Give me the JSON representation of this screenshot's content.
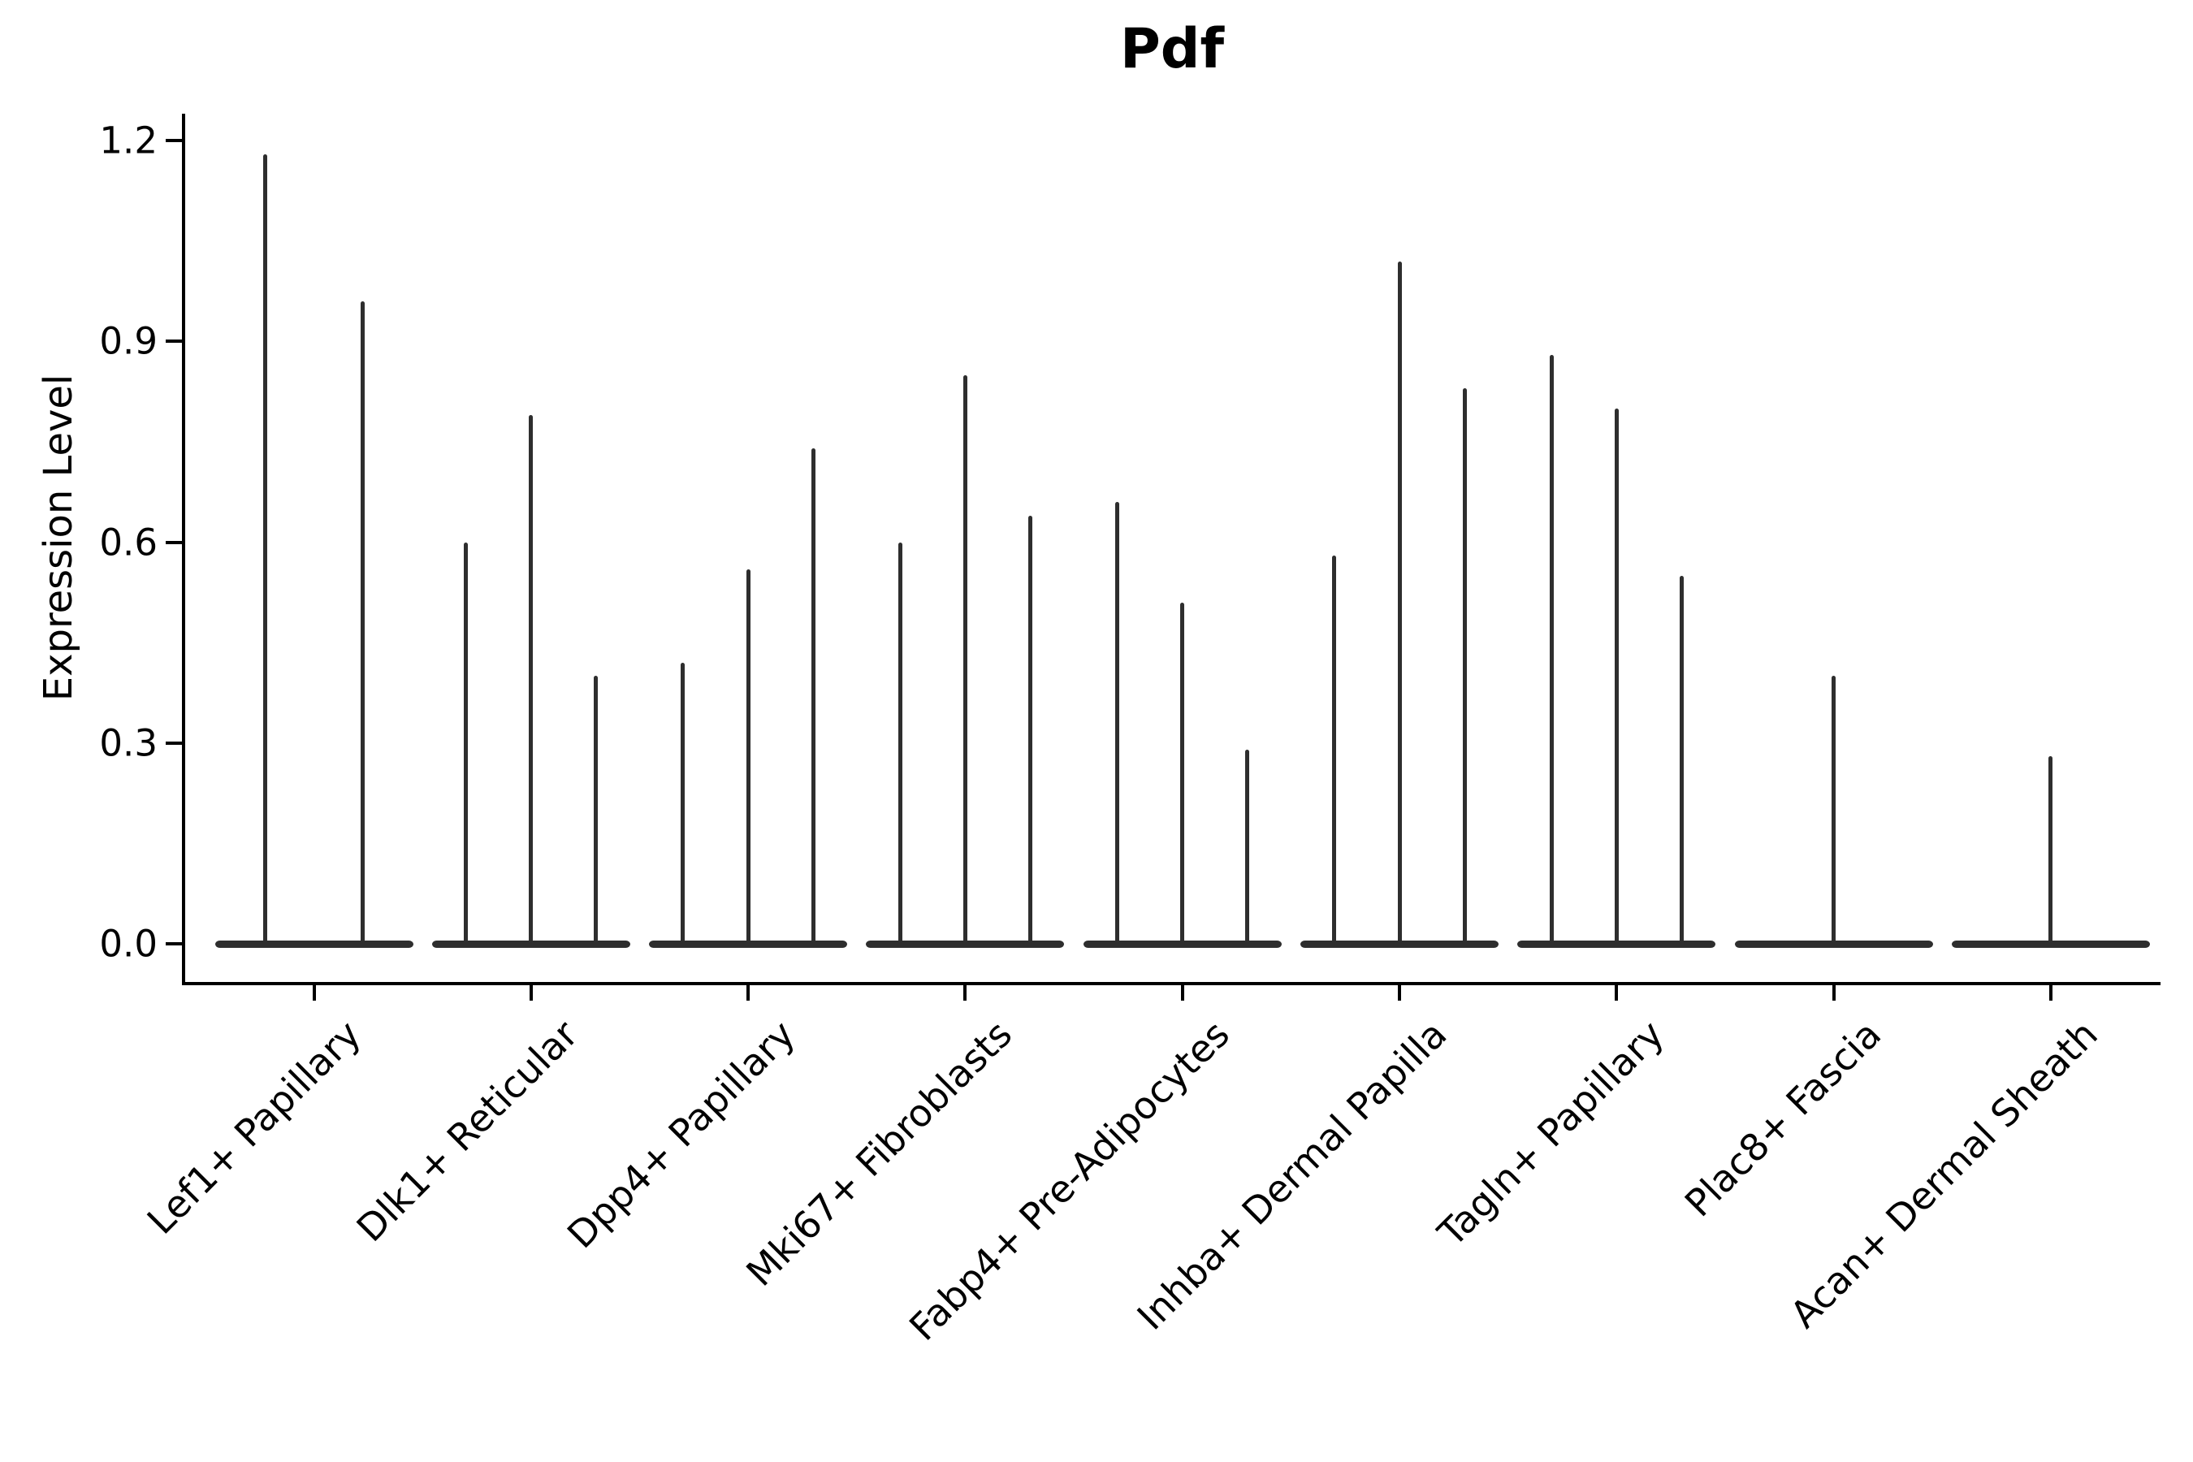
{
  "chart_data": {
    "type": "violin",
    "title": "Pdf",
    "ylabel": "Expression Level",
    "xlabel": "",
    "ylim": [
      0,
      1.2
    ],
    "yticks": [
      "0.0",
      "0.3",
      "0.6",
      "0.9",
      "1.2"
    ],
    "x_tick_rotation": 45,
    "grid": false,
    "legend": null,
    "violin_color": "#2e2e2e",
    "axis_color": "#000000",
    "categories": [
      "Lef1+ Papillary",
      "Dlk1+ Reticular",
      "Dpp4+ Papillary",
      "Mki67+ Fibroblasts",
      "Fabp4+ Pre-Adipocytes",
      "Inhba+ Dermal Papilla",
      "Tagln+ Papillary",
      "Plac8+ Fascia",
      "Acan+ Dermal Sheath"
    ],
    "groups": [
      {
        "label": "Lef1+ Papillary",
        "violins": [
          {
            "dx": -0.225,
            "max": 1.18
          },
          {
            "dx": 0.225,
            "max": 0.96
          }
        ]
      },
      {
        "label": "Dlk1+ Reticular",
        "violins": [
          {
            "dx": -0.3,
            "max": 0.6
          },
          {
            "dx": 0,
            "max": 0.79
          },
          {
            "dx": 0.3,
            "max": 0.4
          }
        ]
      },
      {
        "label": "Dpp4+ Papillary",
        "violins": [
          {
            "dx": -0.3,
            "max": 0.42
          },
          {
            "dx": 0,
            "max": 0.56
          },
          {
            "dx": 0.3,
            "max": 0.74
          }
        ]
      },
      {
        "label": "Mki67+ Fibroblasts",
        "violins": [
          {
            "dx": -0.3,
            "max": 0.6
          },
          {
            "dx": 0,
            "max": 0.85
          },
          {
            "dx": 0.3,
            "max": 0.64
          }
        ]
      },
      {
        "label": "Fabp4+ Pre-Adipocytes",
        "violins": [
          {
            "dx": -0.3,
            "max": 0.66
          },
          {
            "dx": 0,
            "max": 0.51
          },
          {
            "dx": 0.3,
            "max": 0.29
          }
        ]
      },
      {
        "label": "Inhba+ Dermal Papilla",
        "violins": [
          {
            "dx": -0.3,
            "max": 0.58
          },
          {
            "dx": 0,
            "max": 1.02
          },
          {
            "dx": 0.3,
            "max": 0.83
          }
        ]
      },
      {
        "label": "Tagln+ Papillary",
        "violins": [
          {
            "dx": -0.3,
            "max": 0.88
          },
          {
            "dx": 0,
            "max": 0.8
          },
          {
            "dx": 0.3,
            "max": 0.55
          }
        ]
      },
      {
        "label": "Plac8+ Fascia",
        "violins": [
          {
            "dx": 0,
            "max": 0.4
          }
        ]
      },
      {
        "label": "Acan+ Dermal Sheath",
        "violins": [
          {
            "dx": 0,
            "max": 0.28
          }
        ]
      }
    ]
  }
}
